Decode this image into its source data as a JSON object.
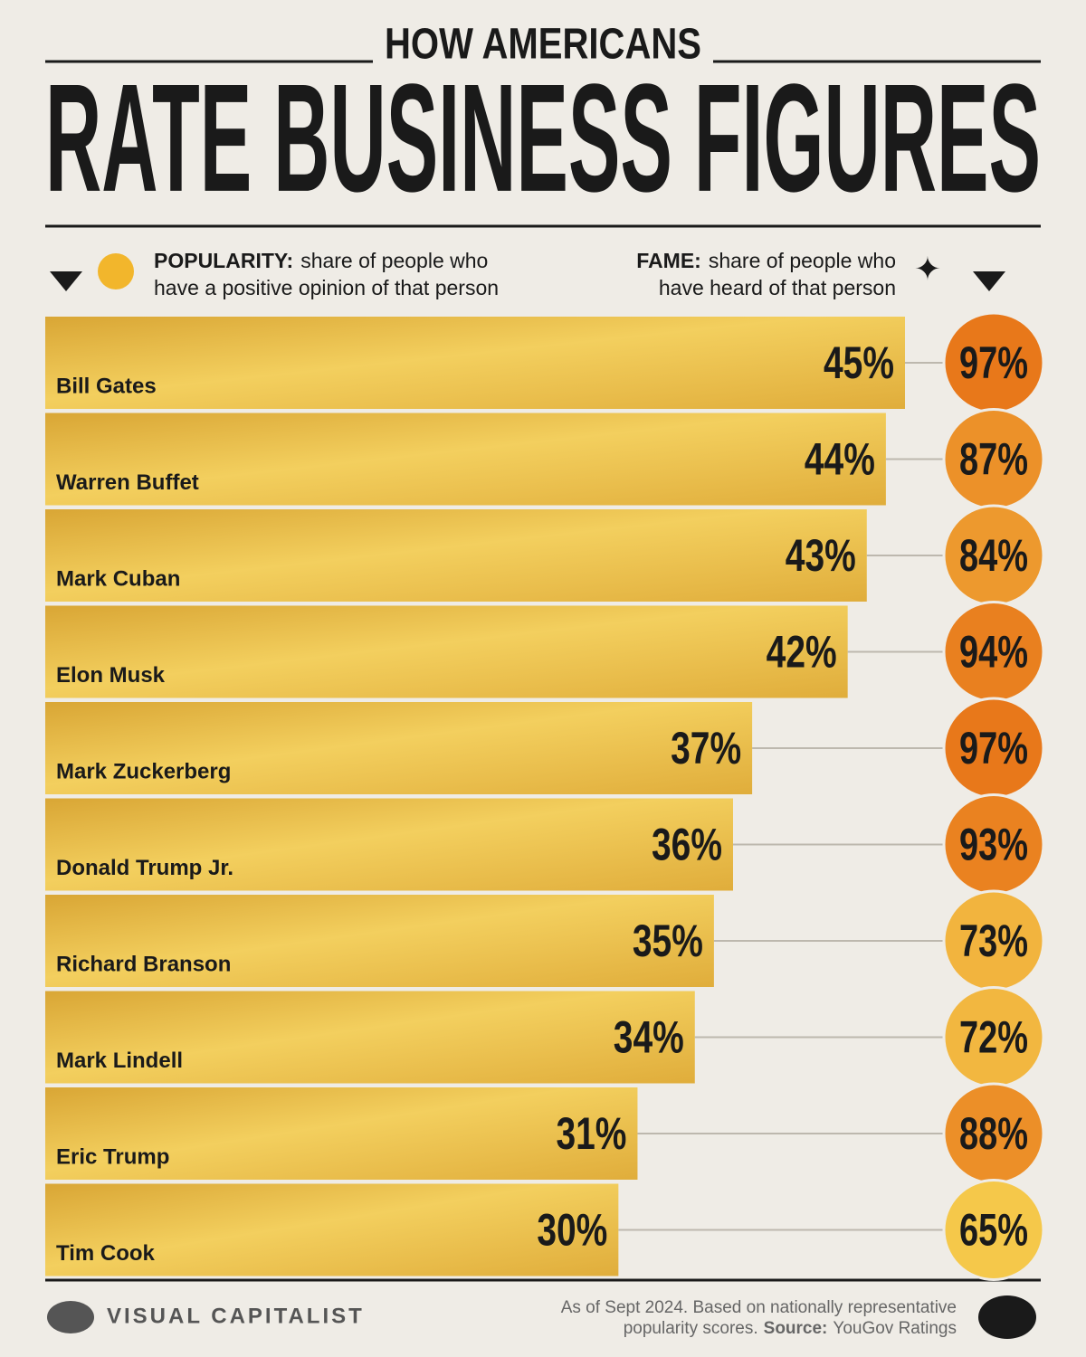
{
  "chart_data": {
    "type": "bar",
    "title": "HOW AMERICANS",
    "subtitle": "RATE BUSINESS FIGURES",
    "categories": [
      "Bill Gates",
      "Warren Buffet",
      "Mark Cuban",
      "Elon Musk",
      "Mark Zuckerberg",
      "Donald Trump Jr.",
      "Richard Branson",
      "Mark Lindell",
      "Eric Trump",
      "Tim Cook"
    ],
    "series": [
      {
        "name": "POPULARITY:",
        "description": [
          "share of people who",
          "have a positive opinion of that person"
        ],
        "color": "#e9b93c",
        "values": [
          45,
          44,
          43,
          42,
          37,
          36,
          35,
          34,
          31,
          30
        ],
        "value_labels": [
          "45%",
          "44%",
          "43%",
          "42%",
          "37%",
          "36%",
          "35%",
          "34%",
          "31%",
          "30%"
        ]
      },
      {
        "name": "FAME:",
        "description": [
          "share of people who",
          "have heard of that person"
        ],
        "color": "#e8781a",
        "values": [
          97,
          87,
          84,
          94,
          97,
          93,
          73,
          72,
          88,
          65
        ],
        "value_labels": [
          "97%",
          "87%",
          "84%",
          "94%",
          "97%",
          "93%",
          "73%",
          "72%",
          "88%",
          "65%"
        ]
      }
    ],
    "brand": "VISUAL CAPITALIST",
    "note": [
      "As of Sept 2024. Based on nationally representative",
      "popularity scores."
    ],
    "source_label": "Source:",
    "source": "YouGov Ratings"
  }
}
